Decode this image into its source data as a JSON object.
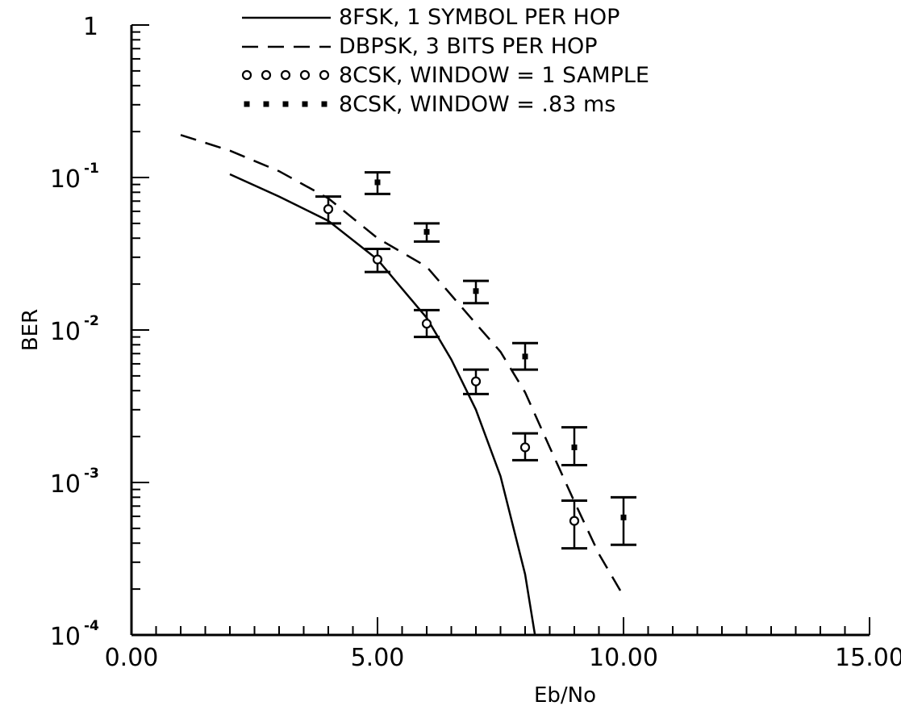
{
  "chart_data": {
    "type": "line",
    "xlabel": "Eb/No",
    "ylabel": "BER",
    "xlim": [
      0,
      15
    ],
    "ylim": [
      0.0001,
      1
    ],
    "yscale": "log",
    "grid": false,
    "legend_position": "top",
    "x_ticks": [
      "0.00",
      "5.00",
      "10.00",
      "15.00"
    ],
    "y_ticks": [
      {
        "value": 1,
        "base": "1",
        "exp": ""
      },
      {
        "value": 0.1,
        "base": "10",
        "exp": "-1"
      },
      {
        "value": 0.01,
        "base": "10",
        "exp": "-2"
      },
      {
        "value": 0.001,
        "base": "10",
        "exp": "-3"
      },
      {
        "value": 0.0001,
        "base": "10",
        "exp": "-4"
      }
    ],
    "series": [
      {
        "name": "8FSK, 1 SYMBOL PER HOP",
        "style": "solid",
        "x": [
          2.0,
          3.0,
          4.0,
          5.0,
          6.0,
          6.5,
          7.0,
          7.5,
          8.0,
          8.2
        ],
        "y": [
          0.105,
          0.075,
          0.052,
          0.029,
          0.012,
          0.0064,
          0.003,
          0.0011,
          0.00025,
          0.0001
        ]
      },
      {
        "name": "DBPSK, 3 BITS PER HOP",
        "style": "dashed",
        "x": [
          1.0,
          2.0,
          3.0,
          4.0,
          5.0,
          6.0,
          7.0,
          7.5,
          8.0,
          8.5,
          9.0,
          9.5,
          10.0
        ],
        "y": [
          0.19,
          0.15,
          0.11,
          0.073,
          0.04,
          0.026,
          0.011,
          0.0072,
          0.0039,
          0.0017,
          0.00075,
          0.00034,
          0.00018
        ]
      },
      {
        "name": "8CSK, WINDOW = 1 SAMPLE",
        "style": "circle",
        "x": [
          4,
          5,
          6,
          7,
          8,
          9
        ],
        "y": [
          0.062,
          0.029,
          0.011,
          0.0046,
          0.0017,
          0.00056
        ],
        "y_low": [
          0.05,
          0.024,
          0.009,
          0.0038,
          0.0014,
          0.00037
        ],
        "y_high": [
          0.075,
          0.034,
          0.0135,
          0.0055,
          0.0021,
          0.00076
        ]
      },
      {
        "name": "8CSK, WINDOW = .83 ms",
        "style": "star",
        "x": [
          5,
          6,
          7,
          8,
          9,
          10
        ],
        "y": [
          0.093,
          0.044,
          0.018,
          0.0067,
          0.0017,
          0.00059
        ],
        "y_low": [
          0.078,
          0.038,
          0.015,
          0.0055,
          0.0013,
          0.00039
        ],
        "y_high": [
          0.108,
          0.05,
          0.021,
          0.0082,
          0.0023,
          0.0008
        ]
      }
    ]
  }
}
